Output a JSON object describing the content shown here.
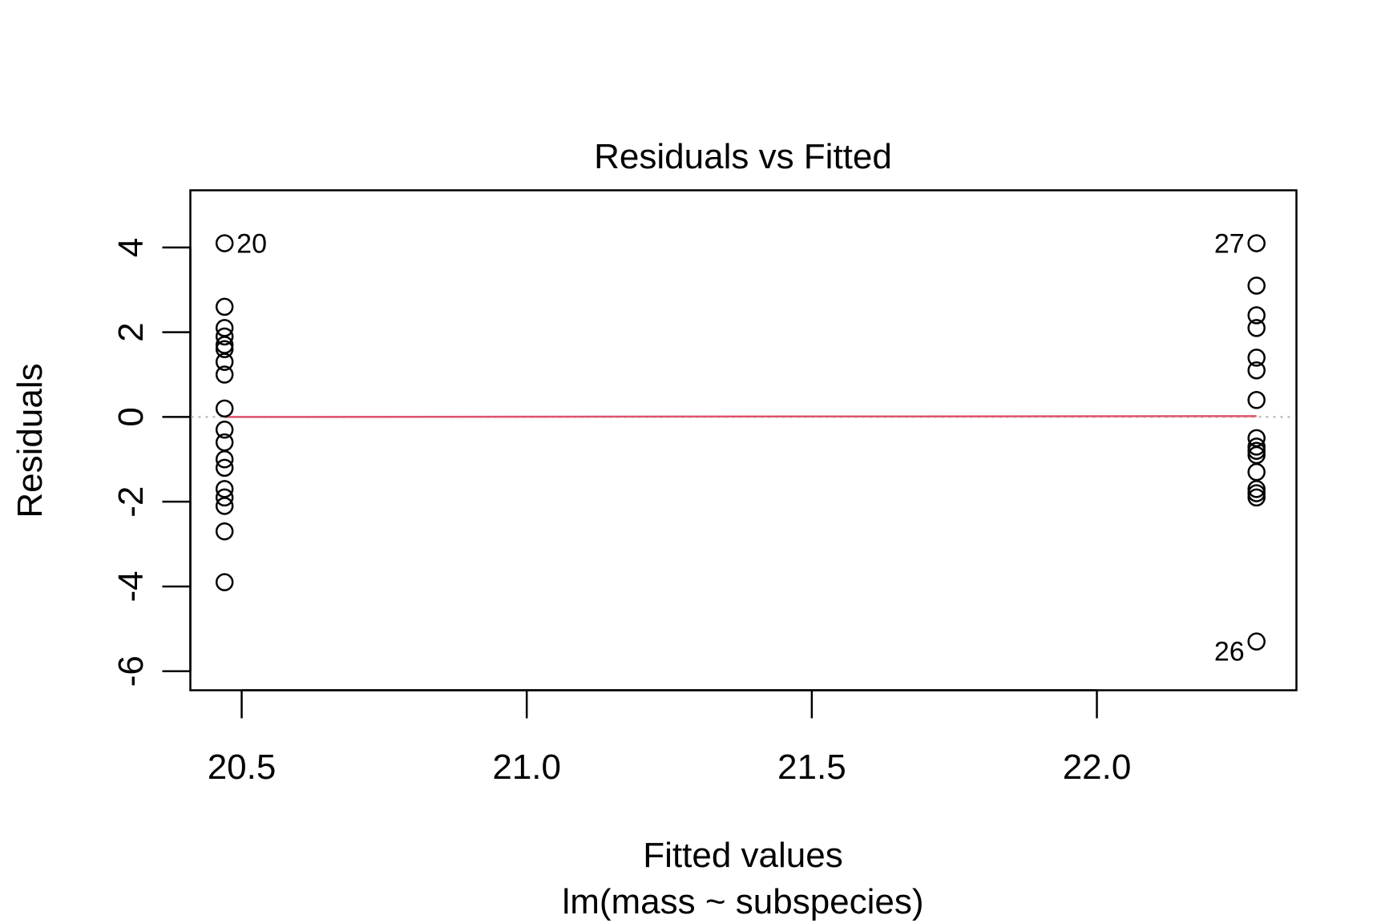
{
  "chart_data": {
    "type": "scatter",
    "title": "Residuals vs Fitted",
    "xlabel": "Fitted values",
    "sublabel": "lm(mass ~ subspecies)",
    "ylabel": "Residuals",
    "xlim": [
      20.41,
      22.35
    ],
    "ylim": [
      -6.45,
      5.35
    ],
    "xticks": [
      20.5,
      21.0,
      21.5,
      22.0
    ],
    "xtick_labels": [
      "20.5",
      "21.0",
      "21.5",
      "22.0"
    ],
    "yticks": [
      -6,
      -4,
      -2,
      0,
      2,
      4
    ],
    "ytick_labels": [
      "-6",
      "-4",
      "-2",
      "0",
      "2",
      "4"
    ],
    "reference_line": {
      "y": 0,
      "style": "dotted",
      "color": "#bebebe"
    },
    "smoother": {
      "color": "#df536b",
      "points": [
        [
          20.47,
          0.0
        ],
        [
          22.28,
          0.02
        ]
      ]
    },
    "point_color": "#000000",
    "series": [
      {
        "x": 20.47,
        "values": [
          4.1,
          2.6,
          2.1,
          1.9,
          1.7,
          1.6,
          1.3,
          1.0,
          0.2,
          -0.3,
          -0.6,
          -1.0,
          -1.2,
          -1.7,
          -1.9,
          -2.1,
          -2.7,
          -3.9
        ]
      },
      {
        "x": 22.28,
        "values": [
          4.1,
          3.1,
          2.4,
          2.1,
          1.4,
          1.1,
          0.4,
          -0.5,
          -0.7,
          -0.8,
          -0.9,
          -1.3,
          -1.7,
          -1.8,
          -1.9,
          -5.3
        ]
      }
    ],
    "point_labels": [
      {
        "text": "20",
        "x": 20.47,
        "y": 4.1,
        "side": "right"
      },
      {
        "text": "27",
        "x": 22.28,
        "y": 4.1,
        "side": "left"
      },
      {
        "text": "26",
        "x": 22.28,
        "y": -5.3,
        "side": "left"
      }
    ]
  }
}
